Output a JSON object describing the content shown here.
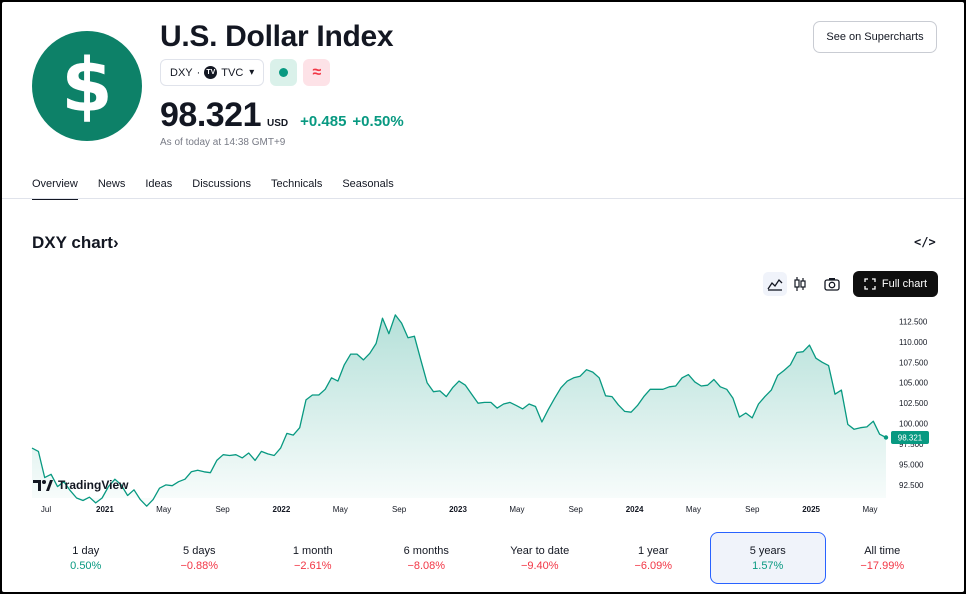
{
  "header": {
    "logo_glyph": "$",
    "title": "U.S. Dollar Index",
    "symbol": "DXY",
    "separator": "·",
    "exchange": "TVC",
    "exchange_badge": "TV",
    "price": "98.321",
    "currency": "USD",
    "change_abs": "+0.485",
    "change_pct": "+0.50%",
    "as_of": "As of today at 14:38 GMT+9",
    "supercharts_label": "See on Supercharts",
    "market_status_icon": "green-dot-icon",
    "tilde_icon": "≈"
  },
  "tabs": [
    "Overview",
    "News",
    "Ideas",
    "Discussions",
    "Technicals",
    "Seasonals"
  ],
  "chart_header": {
    "title": "DXY chart",
    "title_arrow": "›",
    "embed_icon": "</>",
    "full_chart_label": "Full chart"
  },
  "branding": "TradingView",
  "chart_data": {
    "type": "area",
    "last_value_label": "98.321",
    "ylim": [
      90.9,
      113.9
    ],
    "y_ticks": [
      "112.500",
      "110.000",
      "107.500",
      "105.000",
      "102.500",
      "100.000",
      "97.500",
      "95.000",
      "92.500"
    ],
    "x_ticks": [
      {
        "label": "Jul",
        "bold": false
      },
      {
        "label": "2021",
        "bold": true
      },
      {
        "label": "May",
        "bold": false
      },
      {
        "label": "Sep",
        "bold": false
      },
      {
        "label": "2022",
        "bold": true
      },
      {
        "label": "May",
        "bold": false
      },
      {
        "label": "Sep",
        "bold": false
      },
      {
        "label": "2023",
        "bold": true
      },
      {
        "label": "May",
        "bold": false
      },
      {
        "label": "Sep",
        "bold": false
      },
      {
        "label": "2024",
        "bold": true
      },
      {
        "label": "May",
        "bold": false
      },
      {
        "label": "Sep",
        "bold": false
      },
      {
        "label": "2025",
        "bold": true
      },
      {
        "label": "May",
        "bold": false
      }
    ],
    "series": [
      {
        "values": [
          97.0,
          96.6,
          93.4,
          93.8,
          92.3,
          92.9,
          91.8,
          90.9,
          90.6,
          91.0,
          90.3,
          90.9,
          92.3,
          93.2,
          92.5,
          91.2,
          91.9,
          90.7,
          89.9,
          90.7,
          92.1,
          92.5,
          92.4,
          92.9,
          93.2,
          94.1,
          94.3,
          94.1,
          94.0,
          95.5,
          96.2,
          96.1,
          96.2,
          95.8,
          96.4,
          95.5,
          96.6,
          96.3,
          96.1,
          97.0,
          98.8,
          98.6,
          99.5,
          102.9,
          103.5,
          103.5,
          104.2,
          105.6,
          105.2,
          107.2,
          108.5,
          108.5,
          107.8,
          108.6,
          109.8,
          112.9,
          111.0,
          113.3,
          112.3,
          110.5,
          110.7,
          107.8,
          105.0,
          103.9,
          104.0,
          103.3,
          104.4,
          105.2,
          104.7,
          103.6,
          102.5,
          102.6,
          102.6,
          101.9,
          102.4,
          102.6,
          102.2,
          101.8,
          102.4,
          102.1,
          100.2,
          101.7,
          103.1,
          104.4,
          105.2,
          105.6,
          105.8,
          106.6,
          106.3,
          105.6,
          103.4,
          103.3,
          102.3,
          101.5,
          101.4,
          102.2,
          103.3,
          104.2,
          104.2,
          104.2,
          104.5,
          104.6,
          105.6,
          106.0,
          105.1,
          104.6,
          104.7,
          105.4,
          104.5,
          104.2,
          103.1,
          100.8,
          101.3,
          100.7,
          102.4,
          103.3,
          104.1,
          105.9,
          106.5,
          107.2,
          108.7,
          108.8,
          109.6,
          108.0,
          107.5,
          107.1,
          103.6,
          104.1,
          99.9,
          99.3,
          99.5,
          99.6,
          100.3,
          98.7,
          98.3
        ]
      }
    ]
  },
  "periods": [
    {
      "label": "1 day",
      "value": "0.50%",
      "sign": "pos",
      "selected": false
    },
    {
      "label": "5 days",
      "value": "−0.88%",
      "sign": "neg",
      "selected": false
    },
    {
      "label": "1 month",
      "value": "−2.61%",
      "sign": "neg",
      "selected": false
    },
    {
      "label": "6 months",
      "value": "−8.08%",
      "sign": "neg",
      "selected": false
    },
    {
      "label": "Year to date",
      "value": "−9.40%",
      "sign": "neg",
      "selected": false
    },
    {
      "label": "1 year",
      "value": "−6.09%",
      "sign": "neg",
      "selected": false
    },
    {
      "label": "5 years",
      "value": "1.57%",
      "sign": "pos",
      "selected": true
    },
    {
      "label": "All time",
      "value": "−17.99%",
      "sign": "neg",
      "selected": false
    }
  ],
  "colors": {
    "brand_green": "#0d8168",
    "line": "#089981",
    "positive": "#089981",
    "negative": "#f23645",
    "selected_border": "#2962ff"
  }
}
